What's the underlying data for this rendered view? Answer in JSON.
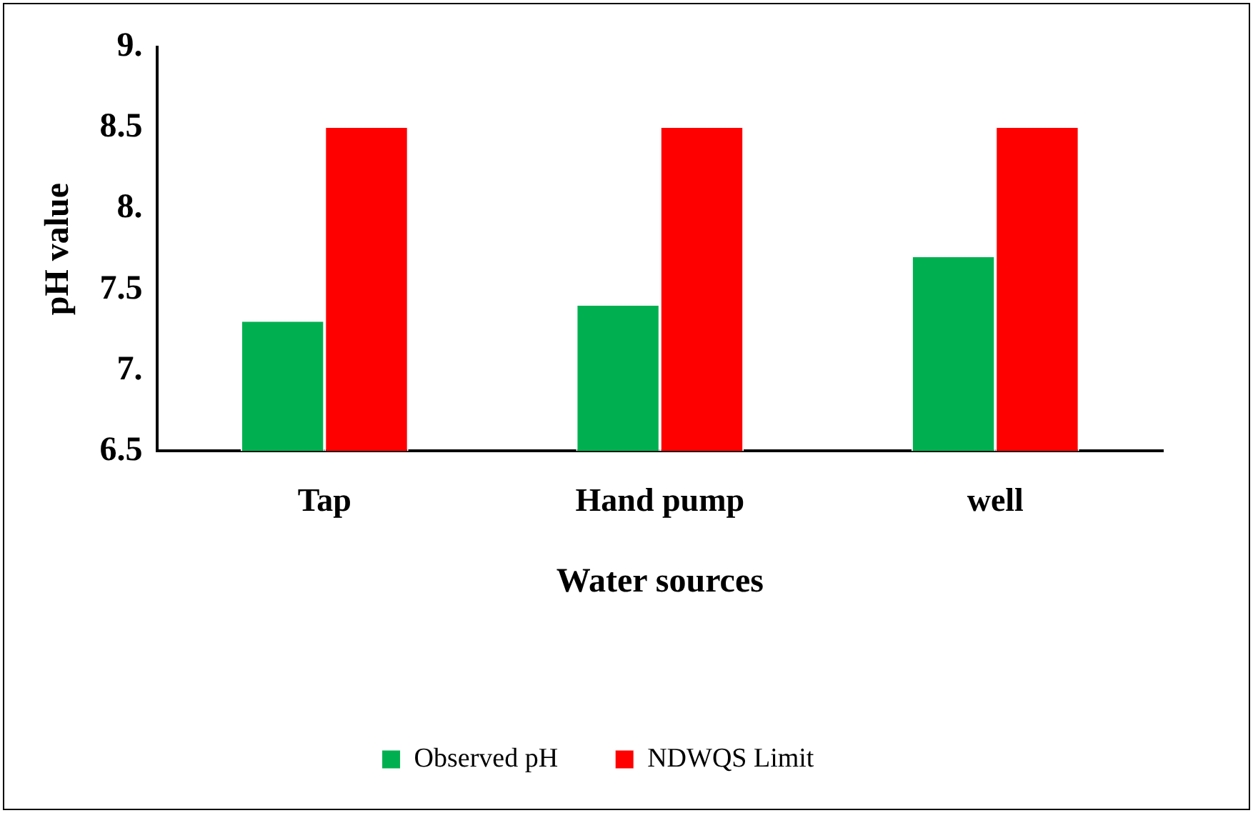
{
  "chart_data": {
    "type": "bar",
    "xlabel": "Water sources",
    "ylabel": "pH value",
    "categories": [
      "Tap",
      "Hand pump",
      "well"
    ],
    "series": [
      {
        "name": "Observed pH",
        "color": "#00b050",
        "values": [
          7.3,
          7.4,
          7.7
        ]
      },
      {
        "name": "NDWQS Limit",
        "color": "#ff0000",
        "values": [
          8.5,
          8.5,
          8.5
        ]
      }
    ],
    "ylim": [
      6.5,
      9
    ],
    "yticks": [
      6.5,
      {
        "value": 7,
        "label": "7."
      },
      7.5,
      {
        "value": 8,
        "label": "8."
      },
      8.5,
      {
        "value": 9,
        "label": "9."
      }
    ],
    "grid": false,
    "legend": "bottom"
  }
}
